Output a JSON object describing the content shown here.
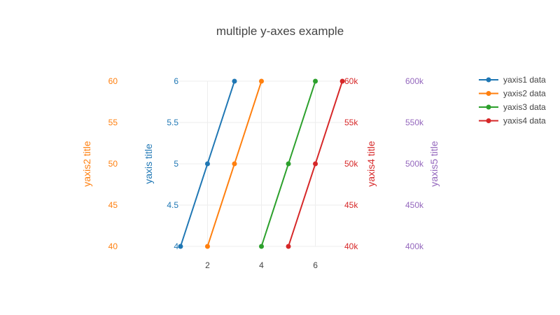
{
  "chart_data": {
    "type": "line",
    "title": "multiple y-axes example",
    "legend_placement": "top-right",
    "grid": true,
    "xaxis": {
      "range": [
        0.95,
        7.05
      ],
      "tick_values": [
        2,
        4,
        6
      ],
      "tick_labels": [
        "2",
        "4",
        "6"
      ]
    },
    "yaxes": [
      {
        "id": "y1",
        "title": "yaxis title",
        "color": "#1f77b4",
        "range": [
          4,
          6
        ],
        "tick_values": [
          4,
          4.5,
          5,
          5.5,
          6
        ],
        "tick_labels": [
          "4",
          "4.5",
          "5",
          "5.5",
          "6"
        ]
      },
      {
        "id": "y2",
        "title": "yaxis2 title",
        "color": "#ff7f0e",
        "range": [
          40,
          60
        ],
        "tick_values": [
          40,
          45,
          50,
          55,
          60
        ],
        "tick_labels": [
          "40",
          "45",
          "50",
          "55",
          "60"
        ]
      },
      {
        "id": "y4",
        "title": "yaxis4 title",
        "color": "#d62728",
        "range": [
          40000,
          60000
        ],
        "tick_values": [
          40000,
          45000,
          50000,
          55000,
          60000
        ],
        "tick_labels": [
          "40k",
          "45k",
          "50k",
          "55k",
          "60k"
        ]
      },
      {
        "id": "y5",
        "title": "yaxis5 title",
        "color": "#9467bd",
        "range": [
          400000,
          600000
        ],
        "tick_values": [
          400000,
          450000,
          500000,
          550000,
          600000
        ],
        "tick_labels": [
          "400k",
          "450k",
          "500k",
          "550k",
          "600k"
        ]
      }
    ],
    "series": [
      {
        "name": "yaxis1 data",
        "yaxis": "y1",
        "color": "#1f77b4",
        "x": [
          1,
          2,
          3
        ],
        "y": [
          4,
          5,
          6
        ]
      },
      {
        "name": "yaxis2 data",
        "yaxis": "y2",
        "color": "#ff7f0e",
        "x": [
          2,
          3,
          4
        ],
        "y": [
          40,
          50,
          60
        ]
      },
      {
        "name": "yaxis3 data",
        "yaxis": "y3",
        "color": "#2ca02c",
        "x": [
          4,
          5,
          6
        ],
        "y": [
          40000,
          50000,
          60000
        ]
      },
      {
        "name": "yaxis4 data",
        "yaxis": "y4",
        "color": "#d62728",
        "x": [
          5,
          6,
          7
        ],
        "y": [
          40000,
          50000,
          60000
        ]
      }
    ]
  }
}
